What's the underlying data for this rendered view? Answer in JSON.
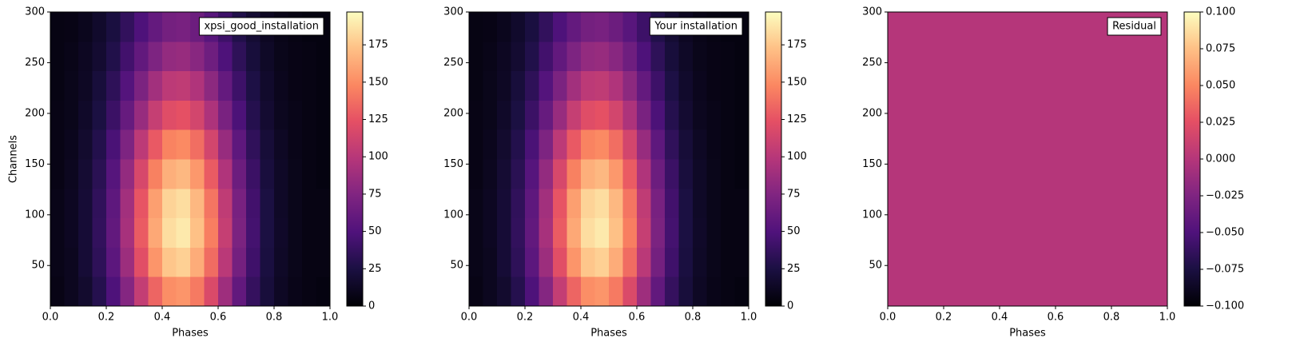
{
  "chart_data": [
    {
      "type": "heatmap",
      "label": "xpsi_good_installation",
      "legend_loc": "upper right",
      "xlabel": "Phases",
      "ylabel": "Channels",
      "colormap": "magma",
      "x_edges": [
        0,
        0.05,
        0.1,
        0.15,
        0.2,
        0.25,
        0.3,
        0.35,
        0.4,
        0.45,
        0.5,
        0.55,
        0.6,
        0.65,
        0.7,
        0.75,
        0.8,
        0.85,
        0.9,
        0.95,
        1
      ],
      "y_edges": [
        10,
        39,
        68,
        97,
        126,
        155,
        184,
        213,
        242,
        271,
        300
      ],
      "values": [
        [
          7,
          11,
          17,
          30,
          49,
          76,
          106,
          133,
          151,
          154,
          142,
          118,
          88,
          59,
          37,
          22,
          13,
          8,
          6,
          5
        ],
        [
          8,
          11,
          20,
          34,
          56,
          87,
          122,
          154,
          175,
          179,
          164,
          136,
          101,
          68,
          42,
          24,
          14,
          9,
          6,
          6
        ],
        [
          8,
          12,
          20,
          36,
          59,
          92,
          129,
          162,
          184,
          189,
          173,
          144,
          107,
          72,
          44,
          25,
          15,
          9,
          6,
          6
        ],
        [
          8,
          12,
          20,
          35,
          57,
          90,
          126,
          158,
          180,
          184,
          169,
          140,
          104,
          70,
          43,
          25,
          14,
          9,
          6,
          6
        ],
        [
          7,
          11,
          19,
          32,
          53,
          83,
          116,
          145,
          165,
          169,
          155,
          129,
          96,
          64,
          40,
          23,
          14,
          9,
          6,
          5
        ],
        [
          7,
          10,
          17,
          29,
          47,
          73,
          102,
          128,
          146,
          149,
          137,
          114,
          85,
          57,
          35,
          21,
          13,
          8,
          6,
          5
        ],
        [
          7,
          9,
          15,
          25,
          40,
          61,
          85,
          107,
          121,
          124,
          114,
          95,
          71,
          48,
          30,
          18,
          11,
          8,
          6,
          5
        ],
        [
          6,
          9,
          13,
          22,
          34,
          52,
          72,
          90,
          102,
          104,
          96,
          80,
          60,
          41,
          26,
          16,
          10,
          7,
          6,
          5
        ],
        [
          6,
          8,
          12,
          18,
          28,
          43,
          59,
          73,
          83,
          85,
          78,
          65,
          49,
          34,
          22,
          14,
          9,
          7,
          6,
          5
        ],
        [
          6,
          7,
          10,
          16,
          24,
          36,
          49,
          60,
          68,
          70,
          64,
          54,
          41,
          28,
          19,
          12,
          8,
          6,
          5,
          5
        ]
      ],
      "xlim": [
        0,
        1
      ],
      "ylim": [
        10,
        300
      ],
      "xticks": [
        {
          "value": 0,
          "label": "0.0"
        },
        0.2,
        0.4,
        0.6,
        0.8,
        {
          "value": 1,
          "label": "1.0"
        }
      ],
      "yticks": [
        50,
        100,
        150,
        200,
        250,
        300
      ],
      "clim": [
        0,
        197
      ],
      "cticks": [
        0,
        25,
        50,
        75,
        100,
        125,
        150,
        175
      ]
    },
    {
      "type": "heatmap",
      "label": "Your installation",
      "legend_loc": "upper right",
      "xlabel": "Phases",
      "colormap": "magma",
      "x_edges": [
        0,
        0.05,
        0.1,
        0.15,
        0.2,
        0.25,
        0.3,
        0.35,
        0.4,
        0.45,
        0.5,
        0.55,
        0.6,
        0.65,
        0.7,
        0.75,
        0.8,
        0.85,
        0.9,
        0.95,
        1
      ],
      "y_edges": [
        10,
        39,
        68,
        97,
        126,
        155,
        184,
        213,
        242,
        271,
        300
      ],
      "values": [
        [
          7,
          11,
          17,
          30,
          49,
          76,
          106,
          133,
          151,
          154,
          142,
          118,
          88,
          59,
          37,
          22,
          13,
          8,
          6,
          5
        ],
        [
          8,
          11,
          20,
          34,
          56,
          87,
          122,
          154,
          175,
          179,
          164,
          136,
          101,
          68,
          42,
          24,
          14,
          9,
          6,
          6
        ],
        [
          8,
          12,
          20,
          36,
          59,
          92,
          129,
          162,
          184,
          189,
          173,
          144,
          107,
          72,
          44,
          25,
          15,
          9,
          6,
          6
        ],
        [
          8,
          12,
          20,
          35,
          57,
          90,
          126,
          158,
          180,
          184,
          169,
          140,
          104,
          70,
          43,
          25,
          14,
          9,
          6,
          6
        ],
        [
          7,
          11,
          19,
          32,
          53,
          83,
          116,
          145,
          165,
          169,
          155,
          129,
          96,
          64,
          40,
          23,
          14,
          9,
          6,
          5
        ],
        [
          7,
          10,
          17,
          29,
          47,
          73,
          102,
          128,
          146,
          149,
          137,
          114,
          85,
          57,
          35,
          21,
          13,
          8,
          6,
          5
        ],
        [
          7,
          9,
          15,
          25,
          40,
          61,
          85,
          107,
          121,
          124,
          114,
          95,
          71,
          48,
          30,
          18,
          11,
          8,
          6,
          5
        ],
        [
          6,
          9,
          13,
          22,
          34,
          52,
          72,
          90,
          102,
          104,
          96,
          80,
          60,
          41,
          26,
          16,
          10,
          7,
          6,
          5
        ],
        [
          6,
          8,
          12,
          18,
          28,
          43,
          59,
          73,
          83,
          85,
          78,
          65,
          49,
          34,
          22,
          14,
          9,
          7,
          6,
          5
        ],
        [
          6,
          7,
          10,
          16,
          24,
          36,
          49,
          60,
          68,
          70,
          64,
          54,
          41,
          28,
          19,
          12,
          8,
          6,
          5,
          5
        ]
      ],
      "xlim": [
        0,
        1
      ],
      "ylim": [
        10,
        300
      ],
      "xticks": [
        {
          "value": 0,
          "label": "0.0"
        },
        0.2,
        0.4,
        0.6,
        0.8,
        {
          "value": 1,
          "label": "1.0"
        }
      ],
      "yticks": [
        50,
        100,
        150,
        200,
        250,
        300
      ],
      "clim": [
        0,
        197
      ],
      "cticks": [
        0,
        25,
        50,
        75,
        100,
        125,
        150,
        175
      ]
    },
    {
      "type": "heatmap",
      "label": "Residual",
      "legend_loc": "upper right",
      "xlabel": "Phases",
      "colormap": "magma",
      "x_edges": [
        0,
        1
      ],
      "y_edges": [
        10,
        300
      ],
      "values": [
        [
          0
        ]
      ],
      "xlim": [
        0,
        1
      ],
      "ylim": [
        10,
        300
      ],
      "xticks": [
        {
          "value": 0,
          "label": "0.0"
        },
        0.2,
        0.4,
        0.6,
        0.8,
        {
          "value": 1,
          "label": "1.0"
        }
      ],
      "yticks": [
        50,
        100,
        150,
        200,
        250,
        300
      ],
      "clim": [
        -0.1,
        0.1
      ],
      "cticks": [
        {
          "value": -0.1,
          "label": "−0.100"
        },
        {
          "value": -0.075,
          "label": "−0.075"
        },
        {
          "value": -0.05,
          "label": "−0.050"
        },
        {
          "value": -0.025,
          "label": "−0.025"
        },
        {
          "value": 0,
          "label": "0.000"
        },
        {
          "value": 0.025,
          "label": "0.025"
        },
        {
          "value": 0.05,
          "label": "0.050"
        },
        {
          "value": 0.075,
          "label": "0.075"
        },
        {
          "value": 0.1,
          "label": "0.100"
        }
      ]
    }
  ]
}
